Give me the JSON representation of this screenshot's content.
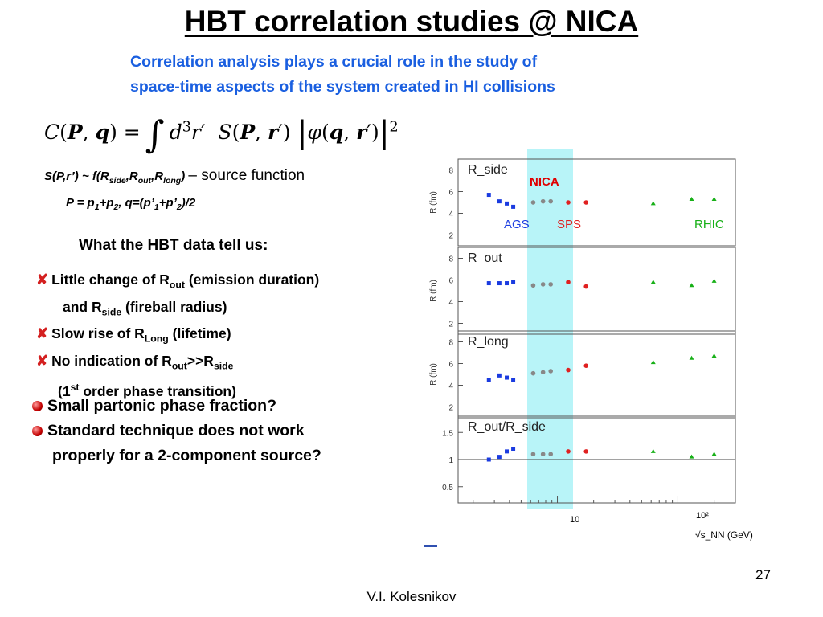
{
  "title": "HBT correlation studies @  NICA",
  "intro": {
    "line1": "Correlation analysis plays a crucial role in the study of",
    "line2": "space-time aspects of the system created in HI collisions"
  },
  "source_function_label": "– source function",
  "hbt_heading": "What the HBT data tell us:",
  "x_items": [
    "Little change of R",
    "(emission duration)",
    "and R",
    "(fireball radius)",
    "Slow rise of R",
    "(lifetime)",
    "No indication of R",
    "order phase transition)"
  ],
  "bullets": [
    "Small partonic phase fraction?",
    "Standard technique does not work",
    "properly for a 2-component source?"
  ],
  "page_number": "27",
  "author": "V.I. Kolesnikov",
  "figure": {
    "nica_label": "NICA",
    "ags_label": "AGS",
    "sps_label": "SPS",
    "rhic_label": "RHIC",
    "y_axis_label": "R (fm)",
    "panel_titles": [
      "R_side",
      "R_out",
      "R_long",
      "R_out/R_side"
    ],
    "x_tick_labels": [
      "10",
      "10²"
    ],
    "x_axis_label": "√s_NN (GeV)",
    "colors": {
      "nica_band": "#b8f4f8",
      "nica_text": "#e00000",
      "ags": "#1a3be0",
      "sps": "#e02020",
      "rhic": "#18b018"
    }
  },
  "chart_data": {
    "type": "scatter",
    "x_scale": "log",
    "xlabel": "√s_NN (GeV)",
    "ylabel": "R (fm)",
    "panels": [
      {
        "title": "R_side",
        "ylim": [
          1,
          9
        ],
        "y_ticks": [
          2,
          4,
          6,
          8
        ],
        "series": [
          {
            "name": "AGS",
            "x": [
              2.7,
              3.3,
              3.8,
              4.3
            ],
            "y": [
              5.7,
              5.1,
              4.9,
              4.6
            ]
          },
          {
            "name": "SPS",
            "x": [
              6.3,
              7.6,
              8.8,
              12.3,
              17.3
            ],
            "y": [
              5.0,
              5.1,
              5.1,
              5.0,
              5.0
            ]
          },
          {
            "name": "RHIC",
            "x": [
              62.4,
              130,
              200
            ],
            "y": [
              4.9,
              5.3,
              5.3
            ]
          }
        ]
      },
      {
        "title": "R_out",
        "ylim": [
          1,
          9
        ],
        "y_ticks": [
          2,
          4,
          6,
          8
        ],
        "series": [
          {
            "name": "AGS",
            "x": [
              2.7,
              3.3,
              3.8,
              4.3
            ],
            "y": [
              5.7,
              5.7,
              5.7,
              5.8
            ]
          },
          {
            "name": "SPS",
            "x": [
              6.3,
              7.6,
              8.8,
              12.3,
              17.3
            ],
            "y": [
              5.5,
              5.6,
              5.6,
              5.8,
              5.4
            ]
          },
          {
            "name": "RHIC",
            "x": [
              62.4,
              130,
              200
            ],
            "y": [
              5.8,
              5.5,
              5.9
            ]
          }
        ]
      },
      {
        "title": "R_long",
        "ylim": [
          1,
          9
        ],
        "y_ticks": [
          2,
          4,
          6,
          8
        ],
        "series": [
          {
            "name": "AGS",
            "x": [
              2.7,
              3.3,
              3.8,
              4.3
            ],
            "y": [
              4.5,
              4.9,
              4.7,
              4.5
            ]
          },
          {
            "name": "SPS",
            "x": [
              6.3,
              7.6,
              8.8,
              12.3,
              17.3
            ],
            "y": [
              5.1,
              5.2,
              5.3,
              5.4,
              5.8
            ]
          },
          {
            "name": "RHIC",
            "x": [
              62.4,
              130,
              200
            ],
            "y": [
              6.1,
              6.5,
              6.7
            ]
          }
        ]
      },
      {
        "title": "R_out/R_side",
        "ylim": [
          0.2,
          1.8
        ],
        "y_ticks": [
          0.5,
          1,
          1.5
        ],
        "series": [
          {
            "name": "AGS",
            "x": [
              2.7,
              3.3,
              3.8,
              4.3
            ],
            "y": [
              1.0,
              1.05,
              1.15,
              1.2
            ]
          },
          {
            "name": "SPS",
            "x": [
              6.3,
              7.6,
              8.8,
              12.3,
              17.3
            ],
            "y": [
              1.1,
              1.1,
              1.1,
              1.15,
              1.15
            ]
          },
          {
            "name": "RHIC",
            "x": [
              62.4,
              130,
              200
            ],
            "y": [
              1.15,
              1.05,
              1.1
            ]
          }
        ]
      }
    ]
  }
}
